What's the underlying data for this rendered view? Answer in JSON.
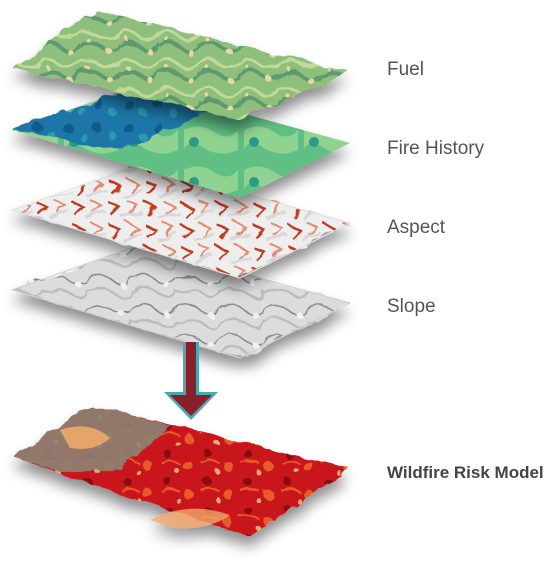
{
  "layers": [
    {
      "id": "fuel",
      "label": "Fuel",
      "colors": {
        "base": "#8fbf7c",
        "mid": "#c3d99a",
        "dark": "#5f9a6e",
        "accent": "#e8d9a0"
      }
    },
    {
      "id": "fire-history",
      "label": "Fire History",
      "colors": {
        "base": "#5fbf84",
        "mid": "#1f77a8",
        "dark": "#0f5c8a",
        "accent": "#a6dc98"
      }
    },
    {
      "id": "aspect",
      "label": "Aspect",
      "colors": {
        "base": "#eeeeee",
        "mid": "#d8d8d8",
        "dark": "#c23b22",
        "accent": "#e58a6e"
      }
    },
    {
      "id": "slope",
      "label": "Slope",
      "colors": {
        "base": "#dcdcdc",
        "mid": "#bdbdbd",
        "dark": "#8a8a8a",
        "accent": "#f2f2f2"
      }
    }
  ],
  "result": {
    "label": "Wildfire Risk Model",
    "colors": {
      "base": "#c8141a",
      "mid": "#e85a2a",
      "dark": "#8a0e0e",
      "accent": "#f0a86a",
      "neutral": "#8c8373"
    }
  },
  "arrow": {
    "colors": {
      "fill": "#8a1f2c",
      "edge": "#4aa8b0"
    }
  },
  "connector": {
    "color": "#6fc3c9"
  }
}
